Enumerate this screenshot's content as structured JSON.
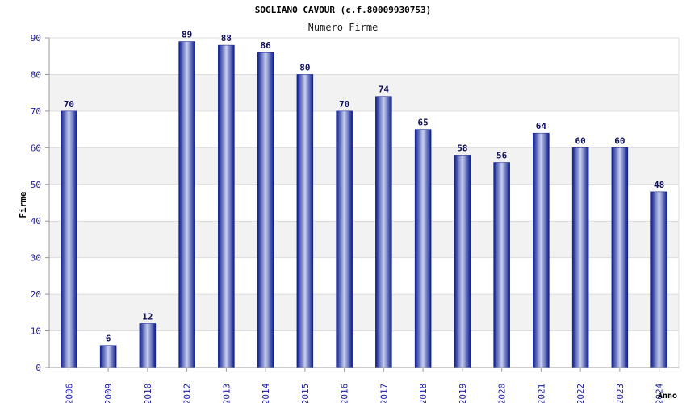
{
  "chart_data": {
    "type": "bar",
    "title": "SOGLIANO CAVOUR (c.f.80009930753)",
    "subtitle": "Numero Firme",
    "xlabel": "Anno",
    "ylabel": "Firme",
    "categories": [
      "2006",
      "2009",
      "2010",
      "2012",
      "2013",
      "2014",
      "2015",
      "2016",
      "2017",
      "2018",
      "2019",
      "2020",
      "2021",
      "2022",
      "2023",
      "2024"
    ],
    "values": [
      70,
      6,
      12,
      89,
      88,
      86,
      80,
      70,
      74,
      65,
      58,
      56,
      64,
      60,
      60,
      48
    ],
    "ylim": [
      0,
      90
    ],
    "yticks": [
      0,
      10,
      20,
      30,
      40,
      50,
      60,
      70,
      80,
      90
    ],
    "grid": true,
    "colors": {
      "bar_dark": "#0a1a8c",
      "bar_light": "#c8d0f0",
      "tick_label": "#1a1aa8",
      "data_label": "#101060",
      "band": "#f2f2f2",
      "axis": "#999999"
    }
  }
}
